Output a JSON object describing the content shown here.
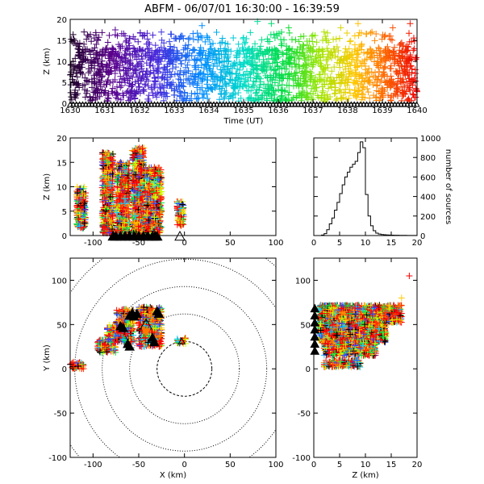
{
  "figure": {
    "title": "ABFM - 06/07/01 16:30:00 - 16:39:59"
  },
  "chart_data": [
    {
      "id": "time_height",
      "type": "scatter",
      "xlabel": "Time (UT)",
      "ylabel": "Z (km)",
      "xlim": [
        1630,
        1640
      ],
      "ylim": [
        0,
        20
      ],
      "xticks": [
        "1630",
        "1631",
        "1632",
        "1633",
        "1634",
        "1635",
        "1636",
        "1637",
        "1638",
        "1639",
        "1640"
      ],
      "yticks": [
        "0",
        "5",
        "10",
        "15",
        "20"
      ],
      "color_encoding": "time (rainbow: purple to red)",
      "dense_band_z": [
        0.5,
        13
      ],
      "outlier_points": [
        [
          1630.4,
          17
        ],
        [
          1630.8,
          15
        ],
        [
          1631.3,
          17.5
        ],
        [
          1632.9,
          16.5
        ],
        [
          1633.8,
          18.5
        ],
        [
          1635.4,
          19.5
        ],
        [
          1635.8,
          19
        ],
        [
          1636.3,
          18
        ],
        [
          1637.8,
          18
        ],
        [
          1638.3,
          19
        ],
        [
          1638.7,
          17
        ],
        [
          1639.3,
          18
        ],
        [
          1639.8,
          19
        ]
      ],
      "sensor_markers": "triangles along Z = 0"
    },
    {
      "id": "x_height",
      "type": "scatter",
      "ylabel": "Z (km)",
      "xlim": [
        -125,
        100
      ],
      "ylim": [
        0,
        20
      ],
      "xticks": [
        "-100",
        "-50",
        "0",
        "50",
        "100"
      ],
      "yticks": [
        "0",
        "5",
        "10",
        "15",
        "20"
      ],
      "clusters": [
        {
          "x": [
            -118,
            -108
          ],
          "z": [
            1.5,
            10
          ]
        },
        {
          "x": [
            -90,
            -78
          ],
          "z": [
            0.5,
            17
          ]
        },
        {
          "x": [
            -74,
            -60
          ],
          "z": [
            0.5,
            15
          ]
        },
        {
          "x": [
            -57,
            -44
          ],
          "z": [
            0.5,
            18
          ]
        },
        {
          "x": [
            -43,
            -35
          ],
          "z": [
            0.5,
            14
          ]
        },
        {
          "x": [
            -34,
            -25
          ],
          "z": [
            0.5,
            14
          ]
        },
        {
          "x": [
            -8,
            -1
          ],
          "z": [
            2,
            7
          ]
        }
      ]
    },
    {
      "id": "height_histogram",
      "type": "bar",
      "ylabel": "number of sources",
      "xlim": [
        0,
        20
      ],
      "ylim": [
        0,
        1000
      ],
      "xticks": [
        "0",
        "5",
        "10",
        "15",
        "20"
      ],
      "yticks": [
        "0",
        "200",
        "400",
        "600",
        "800",
        "1000"
      ],
      "bin_width_km": 0.5,
      "counts": [
        0,
        0,
        0,
        5,
        20,
        60,
        120,
        180,
        260,
        340,
        430,
        520,
        600,
        650,
        700,
        730,
        760,
        850,
        960,
        900,
        420,
        200,
        100,
        50,
        25,
        15,
        10,
        8,
        6,
        5,
        4,
        3,
        3,
        2,
        2,
        2,
        1,
        1,
        1,
        1
      ]
    },
    {
      "id": "plan_view",
      "type": "scatter",
      "xlabel": "X (km)",
      "ylabel": "Y (km)",
      "xlim": [
        -125,
        100
      ],
      "ylim": [
        -100,
        125
      ],
      "xticks": [
        "-100",
        "-50",
        "0",
        "50",
        "100"
      ],
      "yticks": [
        "-100",
        "-50",
        "0",
        "50",
        "100"
      ],
      "range_rings_km": [
        30,
        60,
        90,
        120,
        150
      ],
      "network_center": [
        0,
        0
      ],
      "clusters": [
        {
          "x": [
            -125,
            -110
          ],
          "y": [
            0,
            8
          ]
        },
        {
          "x": [
            -95,
            -75
          ],
          "y": [
            18,
            33
          ]
        },
        {
          "x": [
            -85,
            -55
          ],
          "y": [
            30,
            50
          ]
        },
        {
          "x": [
            -75,
            -55
          ],
          "y": [
            50,
            68
          ]
        },
        {
          "x": [
            -50,
            -25
          ],
          "y": [
            25,
            70
          ]
        },
        {
          "x": [
            -8,
            2
          ],
          "y": [
            28,
            35
          ]
        }
      ]
    },
    {
      "id": "height_y",
      "type": "scatter",
      "xlabel": "Z (km)",
      "xlim": [
        0,
        20
      ],
      "ylim": [
        -100,
        125
      ],
      "xticks": [
        "0",
        "5",
        "10",
        "15",
        "20"
      ],
      "yticks": [
        "-100",
        "-50",
        "0",
        "50",
        "100"
      ],
      "clusters": [
        {
          "z": [
            1,
            17
          ],
          "y": [
            52,
            72
          ]
        },
        {
          "z": [
            1,
            14
          ],
          "y": [
            30,
            52
          ]
        },
        {
          "z": [
            2,
            12
          ],
          "y": [
            15,
            30
          ]
        },
        {
          "z": [
            2,
            9
          ],
          "y": [
            2,
            10
          ]
        }
      ]
    }
  ]
}
